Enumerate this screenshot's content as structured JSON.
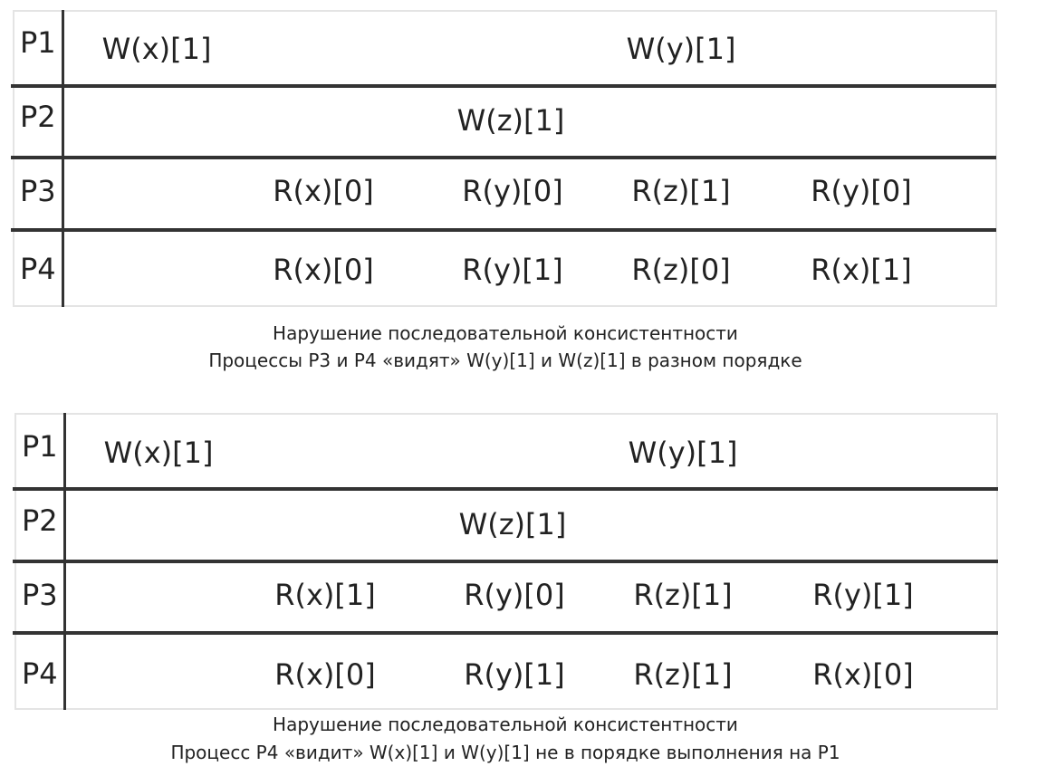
{
  "diagrams": [
    {
      "processes": [
        "P1",
        "P2",
        "P3",
        "P4"
      ],
      "ops": {
        "p1": [
          "W(x)[1]",
          "W(y)[1]"
        ],
        "p2": [
          "W(z)[1]"
        ],
        "p3": [
          "R(x)[0]",
          "R(y)[0]",
          "R(z)[1]",
          "R(y)[0]"
        ],
        "p4": [
          "R(x)[0]",
          "R(y)[1]",
          "R(z)[0]",
          "R(x)[1]"
        ]
      },
      "caption": [
        "Нарушение последовательной консистентности",
        "Процессы P3 и P4 «видят» W(y)[1] и W(z)[1] в разном порядке"
      ]
    },
    {
      "processes": [
        "P1",
        "P2",
        "P3",
        "P4"
      ],
      "ops": {
        "p1": [
          "W(x)[1]",
          "W(y)[1]"
        ],
        "p2": [
          "W(z)[1]"
        ],
        "p3": [
          "R(x)[1]",
          "R(y)[0]",
          "R(z)[1]",
          "R(y)[1]"
        ],
        "p4": [
          "R(x)[0]",
          "R(y)[1]",
          "R(z)[1]",
          "R(x)[0]"
        ]
      },
      "caption": [
        "Нарушение последовательной консистентности",
        "Процесс P4 «видит» W(x)[1] и W(y)[1] не в порядке выполнения на P1"
      ]
    }
  ]
}
